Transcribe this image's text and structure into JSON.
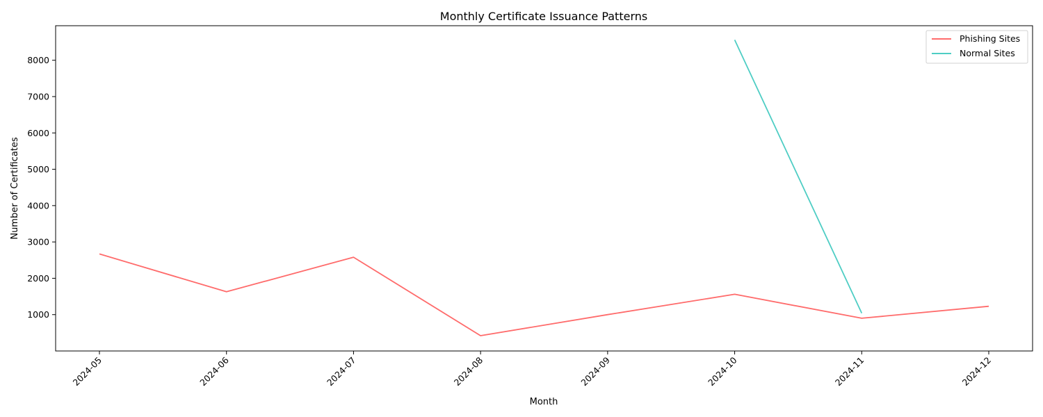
{
  "chart_data": {
    "type": "line",
    "title": "Monthly Certificate Issuance Patterns",
    "xlabel": "Month",
    "ylabel": "Number of Certificates",
    "x": [
      "2024-05",
      "2024-06",
      "2024-07",
      "2024-08",
      "2024-09",
      "2024-10",
      "2024-11",
      "2024-12"
    ],
    "y_ticks": [
      1000,
      2000,
      3000,
      4000,
      5000,
      6000,
      7000,
      8000
    ],
    "ylim": [
      0,
      8950
    ],
    "grid": false,
    "legend_position": "top-right",
    "series": [
      {
        "name": "Phishing Sites",
        "color": "#ff6b6b",
        "x": [
          "2024-05",
          "2024-06",
          "2024-07",
          "2024-08",
          "2024-09",
          "2024-10",
          "2024-11",
          "2024-12"
        ],
        "values": [
          2670,
          1630,
          2580,
          420,
          1000,
          1560,
          900,
          1230
        ]
      },
      {
        "name": "Normal Sites",
        "color": "#4ecdc4",
        "x": [
          "2024-10",
          "2024-11"
        ],
        "values": [
          8560,
          1040
        ]
      }
    ]
  }
}
